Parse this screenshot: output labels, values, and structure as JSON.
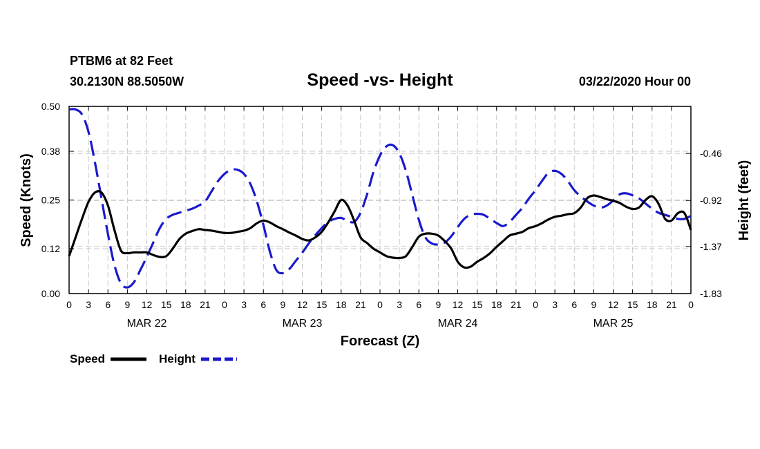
{
  "header": {
    "station": "PTBM6 at 82 Feet",
    "coords": "30.2130N 88.5050W",
    "title": "Speed -vs- Height",
    "run": "03/22/2020 Hour 00"
  },
  "legend": {
    "speed_label": "Speed",
    "height_label": "Height"
  },
  "colors": {
    "speed": "#000000",
    "height": "#1a1acc",
    "grid": "#c8c8c8"
  },
  "chart_data": {
    "type": "line",
    "title": "Speed -vs- Height",
    "xlabel": "Forecast (Z)",
    "ylabel": "Speed (Knots)",
    "y2label": "Height (feet)",
    "xlim": [
      0,
      96
    ],
    "ylim": [
      0,
      0.5
    ],
    "y2lim": [
      -1.83,
      -0.0
    ],
    "y_ticks": [
      0.0,
      0.12,
      0.25,
      0.38,
      0.5
    ],
    "y_tick_labels": [
      "0.00",
      "0.12",
      "0.25",
      "0.38",
      "0.50"
    ],
    "y2_ticks": [
      -1.83,
      -1.37,
      -0.92,
      -0.46
    ],
    "y2_tick_labels": [
      "-1.83",
      "-1.37",
      "-0.92",
      "-0.46"
    ],
    "x_ticks": [
      0,
      3,
      6,
      9,
      12,
      15,
      18,
      21,
      24,
      27,
      30,
      33,
      36,
      39,
      42,
      45,
      48,
      51,
      54,
      57,
      60,
      63,
      66,
      69,
      72,
      75,
      78,
      81,
      84,
      87,
      90,
      93,
      96
    ],
    "x_tick_labels": [
      "0",
      "3",
      "6",
      "9",
      "12",
      "15",
      "18",
      "21",
      "0",
      "3",
      "6",
      "9",
      "12",
      "15",
      "18",
      "21",
      "0",
      "3",
      "6",
      "9",
      "12",
      "15",
      "18",
      "21",
      "0",
      "3",
      "6",
      "9",
      "12",
      "15",
      "18",
      "21",
      "0"
    ],
    "day_labels": [
      {
        "label": "MAR 22",
        "hour": 12
      },
      {
        "label": "MAR 23",
        "hour": 36
      },
      {
        "label": "MAR 24",
        "hour": 60
      },
      {
        "label": "MAR 25",
        "hour": 84
      }
    ],
    "series": [
      {
        "name": "Speed",
        "axis": "left",
        "style": "solid",
        "x": [
          0,
          1,
          2,
          3,
          4,
          5,
          6,
          7,
          8,
          9,
          10,
          11,
          12,
          13,
          14,
          15,
          16,
          17,
          18,
          19,
          20,
          21,
          22,
          23,
          24,
          25,
          26,
          27,
          28,
          29,
          30,
          31,
          32,
          33,
          34,
          35,
          36,
          37,
          38,
          39,
          40,
          41,
          42,
          43,
          44,
          45,
          46,
          47,
          48,
          49,
          50,
          51,
          52,
          53,
          54,
          55,
          56,
          57,
          58,
          59,
          60,
          61,
          62,
          63,
          64,
          65,
          66,
          67,
          68,
          69,
          70,
          71,
          72,
          73,
          74,
          75,
          76,
          77,
          78,
          79,
          80,
          81,
          82,
          83,
          84,
          85,
          86,
          87,
          88,
          89,
          90,
          91,
          92,
          93,
          94,
          95,
          96
        ],
        "values": [
          0.1,
          0.15,
          0.2,
          0.245,
          0.27,
          0.27,
          0.235,
          0.17,
          0.115,
          0.108,
          0.11,
          0.11,
          0.11,
          0.103,
          0.098,
          0.1,
          0.12,
          0.145,
          0.16,
          0.167,
          0.172,
          0.17,
          0.168,
          0.165,
          0.162,
          0.162,
          0.165,
          0.168,
          0.175,
          0.188,
          0.195,
          0.19,
          0.18,
          0.172,
          0.163,
          0.155,
          0.146,
          0.142,
          0.15,
          0.165,
          0.19,
          0.22,
          0.25,
          0.235,
          0.195,
          0.15,
          0.135,
          0.12,
          0.11,
          0.1,
          0.096,
          0.095,
          0.1,
          0.125,
          0.152,
          0.16,
          0.16,
          0.155,
          0.14,
          0.12,
          0.085,
          0.07,
          0.072,
          0.085,
          0.095,
          0.108,
          0.125,
          0.14,
          0.155,
          0.16,
          0.165,
          0.175,
          0.18,
          0.188,
          0.198,
          0.205,
          0.208,
          0.212,
          0.215,
          0.23,
          0.255,
          0.262,
          0.258,
          0.252,
          0.248,
          0.242,
          0.232,
          0.226,
          0.23,
          0.25,
          0.26,
          0.24,
          0.2,
          0.195,
          0.215,
          0.215,
          0.17
        ]
      },
      {
        "name": "Height",
        "axis": "right",
        "style": "dashed",
        "x": [
          0,
          1,
          2,
          3,
          4,
          5,
          6,
          7,
          8,
          9,
          10,
          11,
          12,
          13,
          14,
          15,
          16,
          17,
          18,
          19,
          20,
          21,
          22,
          23,
          24,
          25,
          26,
          27,
          28,
          29,
          30,
          31,
          32,
          33,
          34,
          35,
          36,
          37,
          38,
          39,
          40,
          41,
          42,
          43,
          44,
          45,
          46,
          47,
          48,
          49,
          50,
          51,
          52,
          53,
          54,
          55,
          56,
          57,
          58,
          59,
          60,
          61,
          62,
          63,
          64,
          65,
          66,
          67,
          68,
          69,
          70,
          71,
          72,
          73,
          74,
          75,
          76,
          77,
          78,
          79,
          80,
          81,
          82,
          83,
          84,
          85,
          86,
          87,
          88,
          89,
          90,
          91,
          92,
          93,
          94,
          95,
          96
        ],
        "values": [
          -0.03,
          -0.03,
          -0.08,
          -0.25,
          -0.55,
          -0.9,
          -1.25,
          -1.55,
          -1.73,
          -1.77,
          -1.72,
          -1.6,
          -1.47,
          -1.33,
          -1.19,
          -1.1,
          -1.06,
          -1.04,
          -1.02,
          -1.0,
          -0.97,
          -0.93,
          -0.83,
          -0.73,
          -0.66,
          -0.62,
          -0.62,
          -0.66,
          -0.76,
          -0.93,
          -1.16,
          -1.42,
          -1.6,
          -1.63,
          -1.59,
          -1.51,
          -1.43,
          -1.34,
          -1.26,
          -1.19,
          -1.13,
          -1.1,
          -1.09,
          -1.12,
          -1.13,
          -1.04,
          -0.86,
          -0.64,
          -0.48,
          -0.39,
          -0.38,
          -0.46,
          -0.63,
          -0.87,
          -1.11,
          -1.28,
          -1.34,
          -1.35,
          -1.33,
          -1.27,
          -1.18,
          -1.1,
          -1.06,
          -1.05,
          -1.06,
          -1.1,
          -1.14,
          -1.17,
          -1.13,
          -1.06,
          -0.99,
          -0.9,
          -0.82,
          -0.73,
          -0.65,
          -0.63,
          -0.66,
          -0.73,
          -0.82,
          -0.88,
          -0.93,
          -0.97,
          -0.99,
          -0.97,
          -0.92,
          -0.86,
          -0.85,
          -0.87,
          -0.9,
          -0.95,
          -1.0,
          -1.04,
          -1.06,
          -1.08,
          -1.1,
          -1.1,
          -1.07
        ]
      }
    ]
  }
}
